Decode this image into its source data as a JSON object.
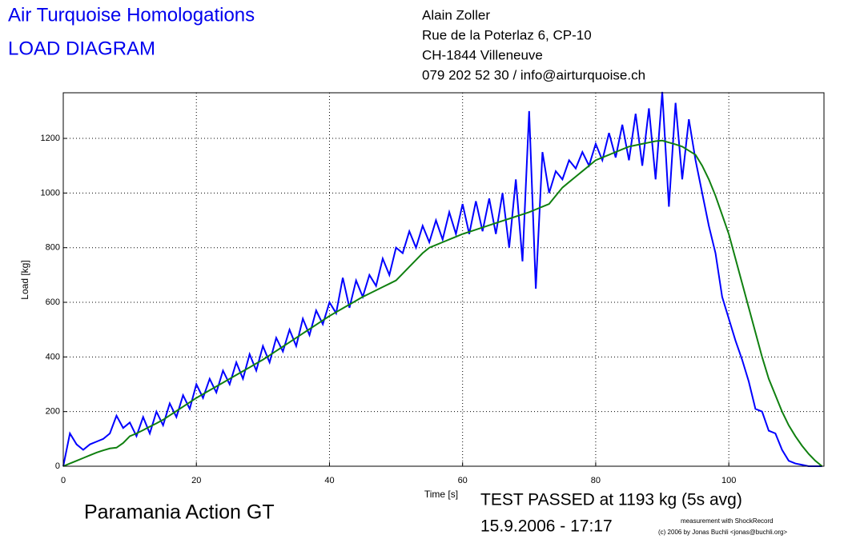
{
  "chart_data": {
    "type": "line",
    "title": "Air Turquoise Homologations",
    "subtitle": "LOAD DIAGRAM",
    "address": [
      "Alain Zoller",
      "Rue de la Poterlaz 6, CP-10",
      "CH-1844 Villeneuve",
      "079 202 52 30 / info@airturquoise.ch"
    ],
    "xlabel": "Time [s]",
    "ylabel": "Load [kg]",
    "glider": "Paramania Action GT",
    "result": "TEST PASSED at 1193 kg (5s avg)",
    "date": "15.9.2006 - 17:17",
    "credits": [
      "measurement with ShockRecord",
      "(c) 2006 by Jonas Buchli <jonas@buchli.org>"
    ],
    "xlim": [
      0,
      114.3
    ],
    "ylim": [
      0,
      1367
    ],
    "xticks": [
      0,
      20,
      40,
      60,
      80,
      100
    ],
    "yticks": [
      0,
      200,
      400,
      600,
      800,
      1000,
      1200
    ],
    "grid": true,
    "x": [
      0,
      1,
      2,
      3,
      4,
      5,
      6,
      7,
      8,
      9,
      10,
      11,
      12,
      13,
      14,
      15,
      16,
      17,
      18,
      19,
      20,
      21,
      22,
      23,
      24,
      25,
      26,
      27,
      28,
      29,
      30,
      31,
      32,
      33,
      34,
      35,
      36,
      37,
      38,
      39,
      40,
      41,
      42,
      43,
      44,
      45,
      46,
      47,
      48,
      49,
      50,
      51,
      52,
      53,
      54,
      55,
      56,
      57,
      58,
      59,
      60,
      61,
      62,
      63,
      64,
      65,
      66,
      67,
      68,
      69,
      70,
      71,
      72,
      73,
      74,
      75,
      76,
      77,
      78,
      79,
      80,
      81,
      82,
      83,
      84,
      85,
      86,
      87,
      88,
      89,
      90,
      91,
      92,
      93,
      94,
      95,
      96,
      97,
      98,
      99,
      100,
      101,
      102,
      103,
      104,
      105,
      106,
      107,
      108,
      109,
      110,
      111,
      112,
      113,
      114
    ],
    "series": [
      {
        "color": "#0000ff",
        "values": [
          0,
          120,
          80,
          60,
          80,
          90,
          100,
          120,
          185,
          140,
          160,
          110,
          180,
          120,
          200,
          150,
          230,
          180,
          260,
          210,
          300,
          250,
          320,
          270,
          350,
          300,
          380,
          320,
          410,
          350,
          440,
          380,
          470,
          420,
          500,
          440,
          540,
          480,
          570,
          520,
          600,
          560,
          690,
          580,
          680,
          620,
          700,
          660,
          760,
          700,
          800,
          780,
          860,
          800,
          880,
          820,
          900,
          830,
          930,
          850,
          960,
          850,
          970,
          860,
          980,
          850,
          1000,
          800,
          1050,
          750,
          1300,
          650,
          1150,
          1000,
          1080,
          1050,
          1120,
          1090,
          1150,
          1100,
          1180,
          1120,
          1220,
          1130,
          1250,
          1120,
          1290,
          1100,
          1310,
          1050,
          1370,
          950,
          1330,
          1050,
          1270,
          1120,
          1000,
          880,
          780,
          620,
          540,
          460,
          390,
          310,
          210,
          200,
          130,
          120,
          60,
          20,
          10,
          5,
          0,
          0,
          0
        ]
      },
      {
        "color": "#108010",
        "values": [
          0,
          10,
          20,
          30,
          40,
          50,
          58,
          65,
          68,
          85,
          110,
          120,
          132,
          145,
          157,
          170,
          186,
          202,
          218,
          234,
          250,
          264,
          278,
          292,
          306,
          320,
          334,
          348,
          362,
          376,
          390,
          406,
          422,
          438,
          454,
          470,
          486,
          502,
          518,
          534,
          550,
          564,
          578,
          592,
          606,
          620,
          632,
          644,
          656,
          668,
          680,
          705,
          730,
          755,
          780,
          800,
          810,
          820,
          830,
          840,
          850,
          858,
          866,
          874,
          882,
          890,
          898,
          906,
          914,
          922,
          930,
          940,
          950,
          960,
          990,
          1020,
          1040,
          1060,
          1080,
          1100,
          1120,
          1130,
          1140,
          1150,
          1160,
          1170,
          1175,
          1180,
          1185,
          1190,
          1192,
          1185,
          1178,
          1170,
          1155,
          1140,
          1100,
          1050,
          990,
          920,
          850,
          760,
          670,
          580,
          490,
          400,
          320,
          260,
          200,
          150,
          110,
          75,
          45,
          20,
          0
        ]
      }
    ]
  }
}
